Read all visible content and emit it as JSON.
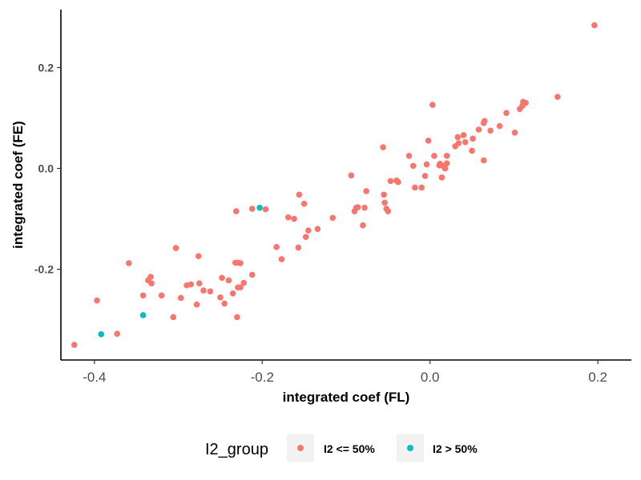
{
  "chart_data": {
    "type": "scatter",
    "title": "",
    "xlabel": "integrated coef (FL)",
    "ylabel": "integrated coef (FE)",
    "xlim": [
      -0.44,
      0.24
    ],
    "ylim": [
      -0.38,
      0.315
    ],
    "xticks": [
      -0.4,
      -0.2,
      0.0,
      0.2
    ],
    "xtick_labels": [
      "-0.4",
      "-0.2",
      "0.0",
      "0.2"
    ],
    "yticks": [
      -0.2,
      0.0,
      0.2
    ],
    "ytick_labels": [
      "-0.2",
      "0.0",
      "0.2"
    ],
    "grid": false,
    "legend_position": "bottom",
    "legend_title": "I2_group",
    "series": [
      {
        "name": "I2 <= 50%",
        "color": "#F8766D",
        "points": [
          [
            -0.424,
            -0.35
          ],
          [
            -0.397,
            -0.262
          ],
          [
            -0.373,
            -0.328
          ],
          [
            -0.359,
            -0.188
          ],
          [
            -0.342,
            -0.252
          ],
          [
            -0.336,
            -0.222
          ],
          [
            -0.333,
            -0.215
          ],
          [
            -0.332,
            -0.228
          ],
          [
            -0.32,
            -0.252
          ],
          [
            -0.306,
            -0.295
          ],
          [
            -0.303,
            -0.158
          ],
          [
            -0.297,
            -0.257
          ],
          [
            -0.29,
            -0.232
          ],
          [
            -0.285,
            -0.23
          ],
          [
            -0.278,
            -0.27
          ],
          [
            -0.276,
            -0.174
          ],
          [
            -0.275,
            -0.228
          ],
          [
            -0.27,
            -0.242
          ],
          [
            -0.262,
            -0.244
          ],
          [
            -0.25,
            -0.256
          ],
          [
            -0.248,
            -0.217
          ],
          [
            -0.245,
            -0.268
          ],
          [
            -0.24,
            -0.222
          ],
          [
            -0.235,
            -0.248
          ],
          [
            -0.232,
            -0.187
          ],
          [
            -0.23,
            -0.295
          ],
          [
            -0.229,
            -0.236
          ],
          [
            -0.229,
            -0.187
          ],
          [
            -0.226,
            -0.188
          ],
          [
            -0.226,
            -0.236
          ],
          [
            -0.222,
            -0.227
          ],
          [
            -0.231,
            -0.085
          ],
          [
            -0.212,
            -0.08
          ],
          [
            -0.212,
            -0.211
          ],
          [
            -0.196,
            -0.081
          ],
          [
            -0.183,
            -0.156
          ],
          [
            -0.177,
            -0.18
          ],
          [
            -0.169,
            -0.097
          ],
          [
            -0.162,
            -0.1
          ],
          [
            -0.157,
            -0.157
          ],
          [
            -0.156,
            -0.052
          ],
          [
            -0.15,
            -0.07
          ],
          [
            -0.148,
            -0.136
          ],
          [
            -0.145,
            -0.123
          ],
          [
            -0.134,
            -0.12
          ],
          [
            -0.116,
            -0.098
          ],
          [
            -0.094,
            -0.014
          ],
          [
            -0.09,
            -0.085
          ],
          [
            -0.088,
            -0.078
          ],
          [
            -0.086,
            -0.077
          ],
          [
            -0.08,
            -0.113
          ],
          [
            -0.078,
            -0.078
          ],
          [
            -0.076,
            -0.045
          ],
          [
            -0.056,
            0.042
          ],
          [
            -0.055,
            -0.052
          ],
          [
            -0.054,
            -0.068
          ],
          [
            -0.052,
            -0.08
          ],
          [
            -0.05,
            -0.085
          ],
          [
            -0.047,
            -0.025
          ],
          [
            -0.04,
            -0.024
          ],
          [
            -0.038,
            -0.027
          ],
          [
            -0.025,
            0.025
          ],
          [
            -0.02,
            0.005
          ],
          [
            -0.018,
            -0.038
          ],
          [
            -0.01,
            -0.038
          ],
          [
            -0.006,
            -0.015
          ],
          [
            -0.004,
            0.008
          ],
          [
            -0.002,
            0.055
          ],
          [
            0.003,
            0.126
          ],
          [
            0.005,
            0.025
          ],
          [
            0.011,
            0.006
          ],
          [
            0.012,
            0.009
          ],
          [
            0.014,
            -0.018
          ],
          [
            0.016,
            0.004
          ],
          [
            0.018,
            0.0
          ],
          [
            0.02,
            0.01
          ],
          [
            0.02,
            0.025
          ],
          [
            0.03,
            0.044
          ],
          [
            0.033,
            0.062
          ],
          [
            0.034,
            0.05
          ],
          [
            0.04,
            0.066
          ],
          [
            0.042,
            0.052
          ],
          [
            0.05,
            0.035
          ],
          [
            0.051,
            0.059
          ],
          [
            0.058,
            0.077
          ],
          [
            0.064,
            0.016
          ],
          [
            0.064,
            0.09
          ],
          [
            0.065,
            0.094
          ],
          [
            0.072,
            0.075
          ],
          [
            0.083,
            0.084
          ],
          [
            0.091,
            0.11
          ],
          [
            0.101,
            0.071
          ],
          [
            0.107,
            0.118
          ],
          [
            0.11,
            0.124
          ],
          [
            0.111,
            0.132
          ],
          [
            0.114,
            0.13
          ],
          [
            0.152,
            0.142
          ],
          [
            0.196,
            0.284
          ]
        ]
      },
      {
        "name": "I2 > 50%",
        "color": "#00BFC4",
        "points": [
          [
            -0.392,
            -0.329
          ],
          [
            -0.342,
            -0.291
          ],
          [
            -0.203,
            -0.078
          ]
        ]
      }
    ]
  }
}
